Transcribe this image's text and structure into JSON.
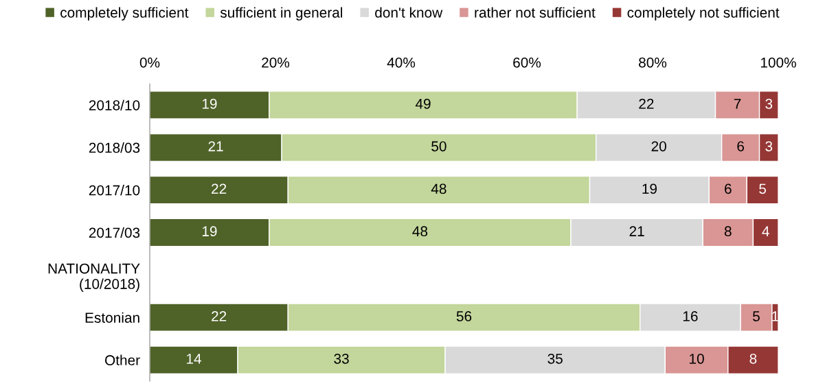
{
  "chart_data": {
    "type": "bar",
    "orientation": "horizontal",
    "stacked": true,
    "data_labels": true,
    "legend": "top",
    "grid": false,
    "categories": [
      "2018/10",
      "2018/03",
      "2017/10",
      "2017/03",
      "NATIONALITY\n(10/2018)",
      "Estonian",
      "Other"
    ],
    "xlim": [
      0,
      100
    ],
    "xticks": [
      {
        "value": 0,
        "label": "0%"
      },
      {
        "value": 20,
        "label": "20%"
      },
      {
        "value": 40,
        "label": "40%"
      },
      {
        "value": 60,
        "label": "60%"
      },
      {
        "value": 80,
        "label": "80%"
      },
      {
        "value": 100,
        "label": "100%"
      }
    ],
    "series": [
      {
        "name": "completely sufficient",
        "color": "#4f6228",
        "values": [
          19,
          21,
          22,
          19,
          null,
          22,
          14
        ]
      },
      {
        "name": "sufficient in general",
        "color": "#c3d69b",
        "values": [
          49,
          50,
          48,
          48,
          null,
          56,
          33
        ]
      },
      {
        "name": "don't know",
        "color": "#d9d9d9",
        "values": [
          22,
          20,
          19,
          21,
          null,
          16,
          35
        ]
      },
      {
        "name": "rather not sufficient",
        "color": "#d99694",
        "values": [
          7,
          6,
          6,
          8,
          null,
          5,
          10
        ]
      },
      {
        "name": "completely not sufficient",
        "color": "#953735",
        "values": [
          3,
          3,
          5,
          4,
          null,
          1,
          8
        ]
      }
    ]
  }
}
